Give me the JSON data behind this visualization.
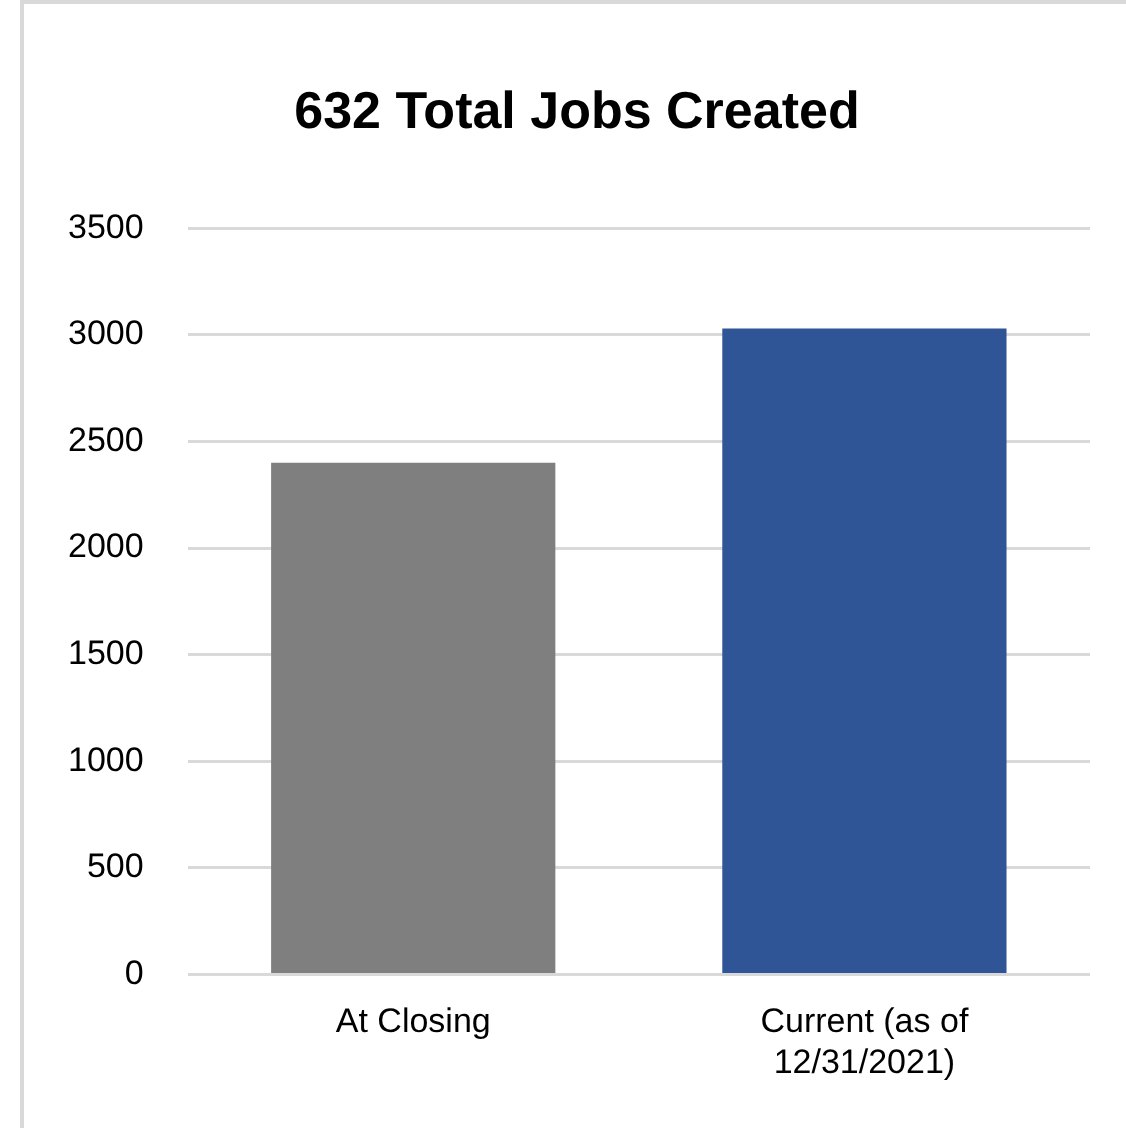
{
  "chart_data": {
    "type": "bar",
    "title": "632 Total Jobs Created",
    "categories": [
      "At Closing",
      "Current (as of 12/31/2021)"
    ],
    "values": [
      2400,
      3030
    ],
    "colors": [
      "#7f7f7f",
      "#2f5597"
    ],
    "ylim": [
      0,
      3500
    ],
    "yticks": [
      0,
      500,
      1000,
      1500,
      2000,
      2500,
      3000,
      3500
    ],
    "grid": "y",
    "legend": false
  }
}
